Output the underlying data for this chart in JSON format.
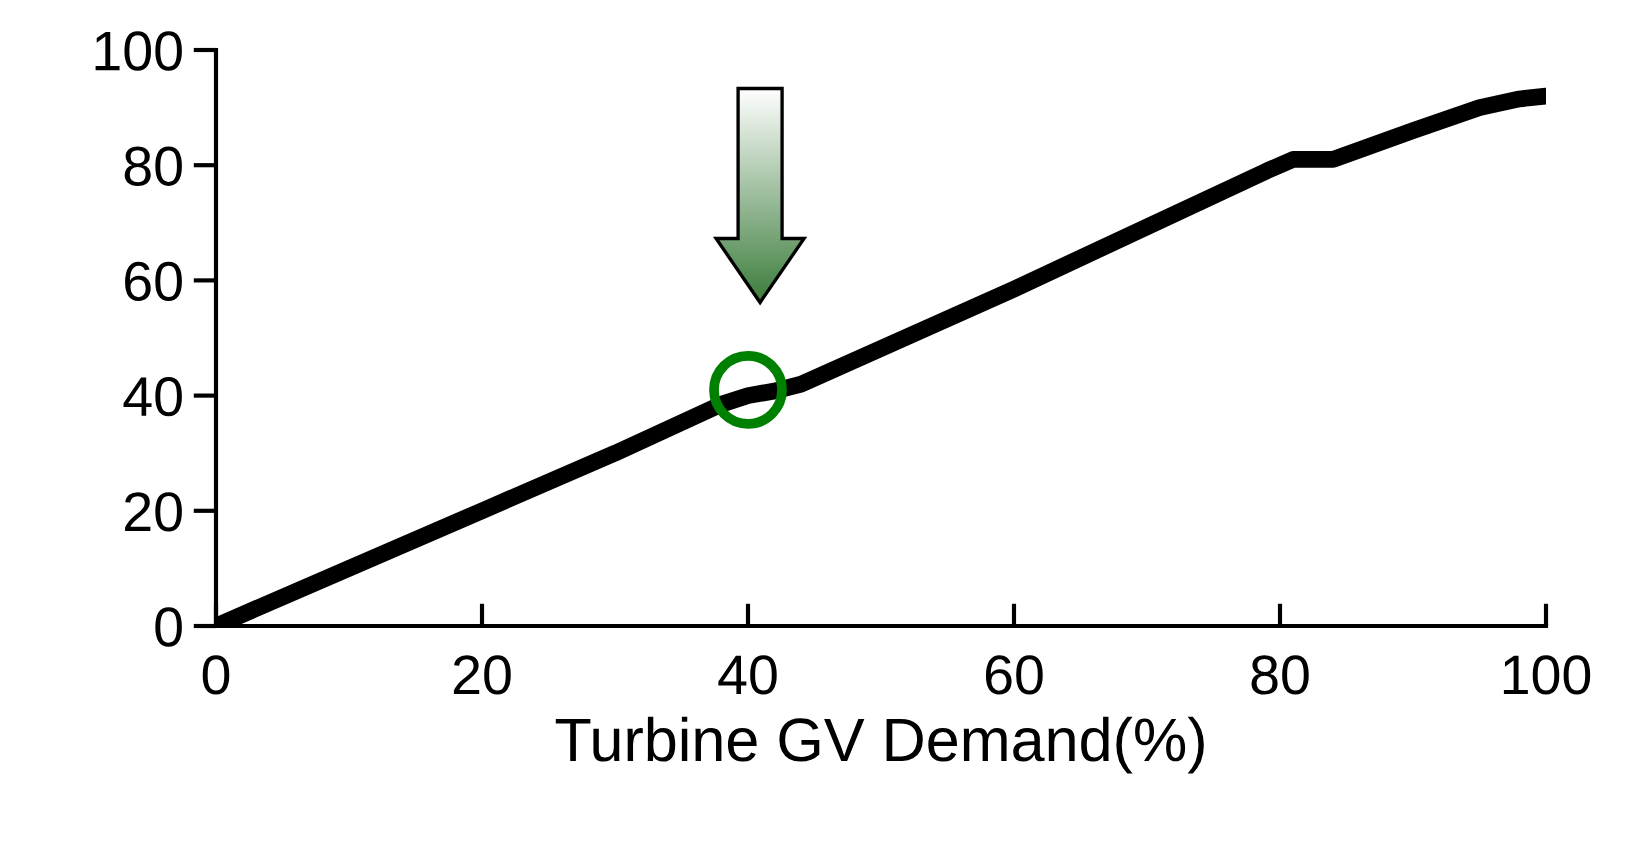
{
  "chart_data": {
    "type": "line",
    "xlabel": "Turbine GV Demand(%)",
    "series": [
      {
        "color": "#000000",
        "marker": "none",
        "x": [
          0,
          10,
          20,
          30,
          38,
          40,
          42,
          44,
          60,
          79,
          81,
          84,
          90,
          95,
          98,
          100
        ],
        "values": [
          0,
          10,
          20,
          30,
          38.5,
          40,
          40.8,
          42,
          58.5,
          79,
          81,
          81,
          86,
          90,
          91.5,
          92
        ]
      },
      {
        "type": "scatter",
        "color": "#008000",
        "marker": "circle",
        "x": [
          40
        ],
        "values": [
          41
        ]
      }
    ],
    "xlim": [
      0,
      100
    ],
    "xticks": [
      0,
      20,
      40,
      60,
      80,
      100
    ],
    "ylim": [
      0,
      100
    ],
    "yticks": [
      0,
      20,
      40,
      60,
      80,
      100
    ],
    "grid": false,
    "legend": false
  }
}
